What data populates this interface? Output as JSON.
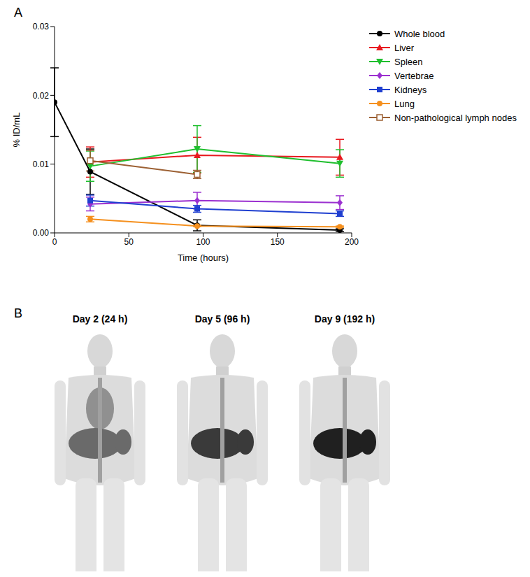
{
  "chart_data": {
    "type": "line",
    "x_label": "Time (hours)",
    "y_label": "% ID/mL",
    "x": [
      0,
      24,
      96,
      192
    ],
    "xlim": [
      0,
      200
    ],
    "xticks": [
      0,
      50,
      100,
      150,
      200
    ],
    "ylim": [
      0,
      0.03
    ],
    "yticks": [
      {
        "value": 0,
        "label": "0.00"
      },
      {
        "value": 0.01,
        "label": "0.01"
      },
      {
        "value": 0.02,
        "label": "0.02"
      },
      {
        "value": 0.03,
        "label": "0.03"
      }
    ],
    "legend": "right",
    "series": [
      {
        "name": "Whole blood",
        "color": "#000000",
        "marker": "circle",
        "values": [
          0.019,
          0.0089,
          0.0011,
          0.0004
        ],
        "errors": [
          0.005,
          0.0033,
          0.0008,
          0.0002
        ]
      },
      {
        "name": "Liver",
        "color": "#e8191f",
        "marker": "triangle",
        "values": [
          null,
          0.0103,
          0.0113,
          0.011
        ],
        "errors": [
          null,
          0.0022,
          0.0026,
          0.0026
        ]
      },
      {
        "name": "Spleen",
        "color": "#1fbf2e",
        "marker": "triangle_down",
        "values": [
          null,
          0.0097,
          0.0122,
          0.0101
        ],
        "errors": [
          null,
          0.0022,
          0.0034,
          0.002
        ]
      },
      {
        "name": "Vertebrae",
        "color": "#9b30d0",
        "marker": "diamond",
        "values": [
          null,
          0.0042,
          0.0047,
          0.0044
        ],
        "errors": [
          null,
          0.001,
          0.0012,
          0.001
        ]
      },
      {
        "name": "Kidneys",
        "color": "#1f3fd0",
        "marker": "square",
        "values": [
          null,
          0.0047,
          0.0035,
          0.0028
        ],
        "errors": [
          null,
          0.0008,
          0.0005,
          0.0004
        ]
      },
      {
        "name": "Lung",
        "color": "#f5901e",
        "marker": "circle",
        "values": [
          null,
          0.002,
          0.001,
          0.0009
        ],
        "errors": [
          null,
          0.0004,
          0.0001,
          0.0001
        ]
      },
      {
        "name": "Non-pathological lymph nodes",
        "color": "#9c6033",
        "marker": "open_square",
        "values": [
          null,
          0.0105,
          0.0085,
          null
        ],
        "errors": [
          null,
          0.0015,
          0.0006,
          null
        ]
      }
    ]
  },
  "panel_labels": [
    "A",
    "B"
  ],
  "images": [
    "Day 2 (24 h)",
    "Day 5 (96 h)",
    "Day 9 (192 h)"
  ]
}
